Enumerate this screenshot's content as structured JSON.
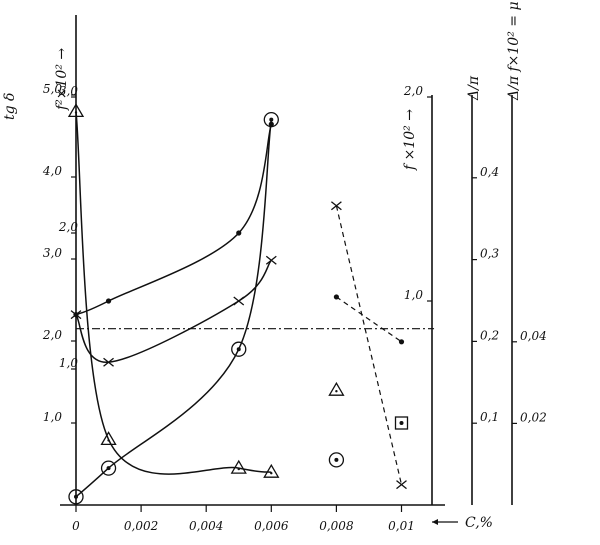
{
  "chart_data": {
    "type": "line",
    "title": "",
    "xlabel": "C,%",
    "xlim": [
      0,
      0.012
    ],
    "x_ticks": [
      {
        "value": 0,
        "label": "0"
      },
      {
        "value": 0.002,
        "label": "0,002"
      },
      {
        "value": 0.004,
        "label": "0,004"
      },
      {
        "value": 0.006,
        "label": "0,006"
      },
      {
        "value": 0.008,
        "label": "0,008"
      },
      {
        "value": 0.01,
        "label": "0,01"
      }
    ],
    "axes": [
      {
        "id": "tgd",
        "label": "tg δ",
        "ylim": [
          0,
          5.0
        ],
        "ticks": [
          {
            "value": 1.0,
            "label": "1,0"
          },
          {
            "value": 2.0,
            "label": "2,0"
          },
          {
            "value": 3.0,
            "label": "3,0"
          },
          {
            "value": 4.0,
            "label": "4,0"
          },
          {
            "value": 5.0,
            "label": "5,0"
          }
        ]
      },
      {
        "id": "f2",
        "label": "f²×10² →",
        "ylim": [
          0,
          3.0
        ],
        "ticks": [
          {
            "value": 1.0,
            "label": "1,0"
          },
          {
            "value": 2.0,
            "label": "2,0"
          },
          {
            "value": 3.0,
            "label": "3,0"
          }
        ]
      },
      {
        "id": "f",
        "label": "f ×10² →",
        "ylim": [
          0,
          2.0
        ],
        "ticks": [
          {
            "value": 1.0,
            "label": "1,0"
          },
          {
            "value": 2.0,
            "label": "2,0"
          }
        ]
      },
      {
        "id": "dpi",
        "label": "Δ/π",
        "ylim": [
          0,
          0.5
        ],
        "ticks": [
          {
            "value": 0.1,
            "label": "0,1"
          },
          {
            "value": 0.2,
            "label": "0,2"
          },
          {
            "value": 0.3,
            "label": "0,3"
          },
          {
            "value": 0.4,
            "label": "0,4"
          }
        ]
      },
      {
        "id": "mu",
        "label": "Δ/π f×10² = μ",
        "ylim": [
          0,
          0.1
        ],
        "ticks": [
          {
            "value": 0.02,
            "label": "0,02"
          },
          {
            "value": 0.04,
            "label": "0,04"
          }
        ]
      }
    ],
    "series": [
      {
        "marker": "triangle",
        "axis": "tgd",
        "style": "solid",
        "x": [
          0,
          0.001,
          0.005,
          0.006
        ],
        "y": [
          4.8,
          0.8,
          0.45,
          0.4
        ]
      },
      {
        "marker": "circle-dot",
        "axis": "tgd",
        "style": "solid",
        "x": [
          0,
          0.001,
          0.005,
          0.006
        ],
        "y": [
          0.1,
          0.45,
          1.9,
          4.7
        ]
      },
      {
        "marker": "dot",
        "axis": "f2",
        "style": "solid",
        "x": [
          0,
          0.001,
          0.005,
          0.006
        ],
        "y": [
          1.4,
          1.5,
          2.0,
          2.8
        ]
      },
      {
        "marker": "cross",
        "axis": "f2",
        "style": "solid",
        "x": [
          0,
          0.001,
          0.005,
          0.006
        ],
        "y": [
          1.4,
          1.05,
          1.5,
          1.8
        ]
      },
      {
        "marker": "cross",
        "axis": "f2",
        "style": "dashed",
        "x": [
          0.008,
          0.01
        ],
        "y": [
          2.2,
          0.15
        ]
      },
      {
        "marker": "dot",
        "axis": "f",
        "style": "dashed",
        "x": [
          0.008,
          0.01
        ],
        "y": [
          1.02,
          0.8
        ]
      },
      {
        "marker": "triangle",
        "axis": "tgd",
        "style": "dashed",
        "x": [
          0.008
        ],
        "y": [
          1.4
        ]
      },
      {
        "marker": "circle-dot",
        "axis": "tgd",
        "style": "dashed",
        "x": [
          0.008
        ],
        "y": [
          0.55
        ]
      },
      {
        "marker": "square-dot",
        "axis": "tgd",
        "style": "none",
        "x": [
          0.01
        ],
        "y": [
          1.0
        ]
      },
      {
        "marker": "none",
        "axis": "tgd",
        "style": "dash-dot",
        "x": [
          0,
          0.011
        ],
        "y": [
          2.15,
          2.15
        ]
      }
    ]
  }
}
